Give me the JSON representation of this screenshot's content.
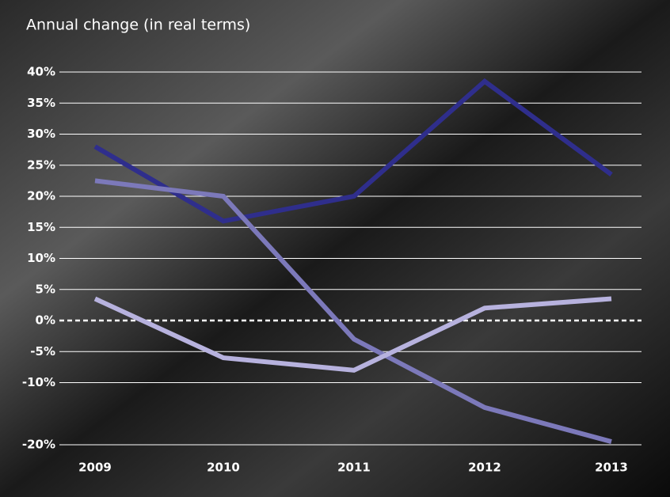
{
  "chart_data": {
    "type": "line",
    "title": "Annual change (in real terms)",
    "categories": [
      "2009",
      "2010",
      "2011",
      "2012",
      "2013"
    ],
    "series": [
      {
        "color": "#2f2e8c",
        "values": [
          28,
          16,
          20,
          38.5,
          23.5
        ]
      },
      {
        "color": "#7c79ba",
        "values": [
          22.5,
          20,
          -3,
          -14,
          -19.5
        ]
      },
      {
        "color": "#b7b2de",
        "values": [
          3.5,
          -6,
          -8,
          2,
          3.5
        ]
      }
    ],
    "ylim": [
      -20,
      40
    ],
    "yticks": [
      {
        "value": 40,
        "label": "40%"
      },
      {
        "value": 35,
        "label": "35%"
      },
      {
        "value": 30,
        "label": "30%"
      },
      {
        "value": 25,
        "label": "25%"
      },
      {
        "value": 20,
        "label": "20%"
      },
      {
        "value": 15,
        "label": "15%"
      },
      {
        "value": 10,
        "label": "10%"
      },
      {
        "value": 5,
        "label": "5%"
      },
      {
        "value": 0,
        "label": "0%"
      },
      {
        "value": -5,
        "label": "-5%"
      },
      {
        "value": -10,
        "label": "-10%"
      },
      {
        "value": -20,
        "label": "-20%"
      }
    ],
    "grid": true
  }
}
